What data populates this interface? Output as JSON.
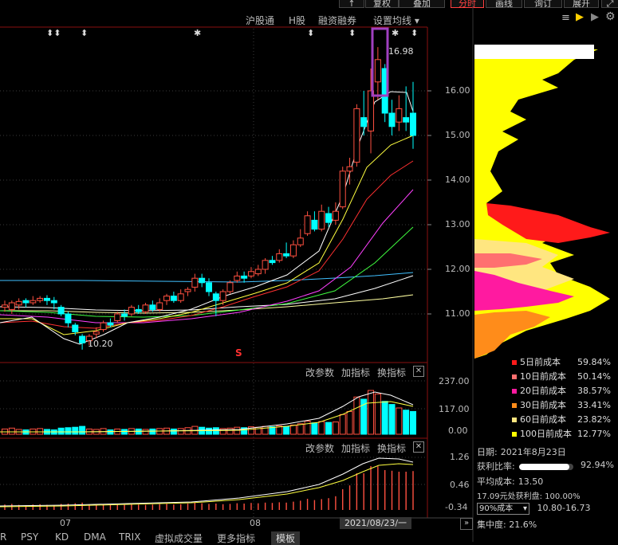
{
  "top_buttons": [
    "↑",
    "复权",
    "叠加",
    "分时",
    "画线",
    "询订",
    "展开"
  ],
  "toolbar": [
    "沪股通",
    "H股",
    "融资融券",
    "设置均线 ▾"
  ],
  "price_axis": [
    "16.00",
    "15.00",
    "14.00",
    "13.00",
    "12.00",
    "11.00"
  ],
  "annotations": {
    "high": "16.98",
    "low": "10.20",
    "s_mark": "S"
  },
  "volume_panel": {
    "params": [
      "改参数",
      "加指标",
      "换指标"
    ],
    "axis": [
      "237.00",
      "117.00",
      "0.00"
    ]
  },
  "macd_panel": {
    "params": [
      "改参数",
      "加指标",
      "换指标"
    ],
    "axis": [
      "1.26",
      "0.46",
      "-0.34"
    ]
  },
  "x_axis": {
    "left_month": "07",
    "right_month": "08",
    "cursor_date": "2021/08/23/一"
  },
  "bottom_tabs": [
    "R",
    "PSY",
    "KD",
    "DMA",
    "TRIX",
    "虚拟成交量",
    "更多指标",
    "模板"
  ],
  "cost_legend": [
    {
      "label": "5日前成本",
      "pct": "59.84%",
      "color": "#ff1a1a"
    },
    {
      "label": "10日前成本",
      "pct": "50.14%",
      "color": "#ff7070"
    },
    {
      "label": "20日前成本",
      "pct": "38.57%",
      "color": "#ff1aa0"
    },
    {
      "label": "30日前成本",
      "pct": "33.41%",
      "color": "#ff8c1a"
    },
    {
      "label": "60日前成本",
      "pct": "23.82%",
      "color": "#ffe680"
    },
    {
      "label": "100日前成本",
      "pct": "12.77%",
      "color": "#ffff00"
    }
  ],
  "chip_info": {
    "date_label": "日期:",
    "date": "2021年8月23日",
    "profit_label": "获利比率:",
    "profit": "92.94%",
    "profit_fraction": 0.9294,
    "avg_label": "平均成本:",
    "avg": "13.50",
    "full_profit": "17.09元处获利盘: 100.00%",
    "cost_select": "90%成本",
    "cost_range": "10.80-16.73",
    "concentration": "集中度: 21.6%"
  },
  "colors": {
    "up": "#ff5040",
    "down": "#00ffff",
    "ma5": "#ffffff",
    "ma10": "#ffff00",
    "ma20": "#ff3030",
    "ma30": "#ff40ff",
    "ma60": "#40ff40",
    "ma120": "#4080ff"
  }
}
